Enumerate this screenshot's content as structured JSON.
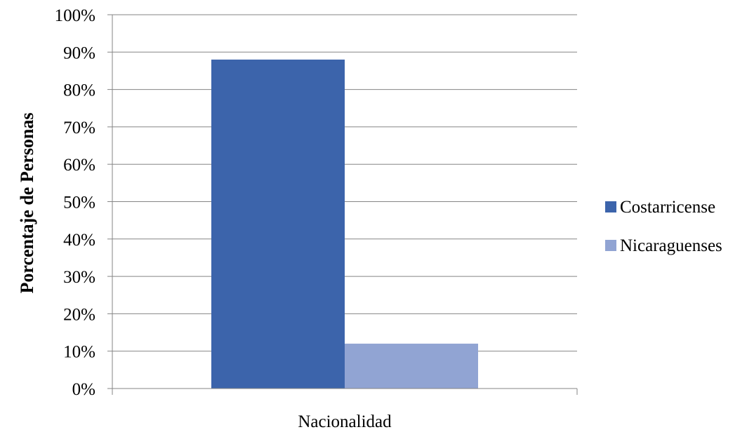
{
  "chart_data": {
    "type": "bar",
    "categories": [
      "Nacionalidad"
    ],
    "series": [
      {
        "name": "Costarricense",
        "values": [
          88
        ],
        "color": "#3C64AB"
      },
      {
        "name": "Nicaraguenses",
        "values": [
          12
        ],
        "color": "#91A4D3"
      }
    ],
    "title": "",
    "xlabel": "Nacionalidad",
    "ylabel": "Porcentaje de Personas",
    "ylim": [
      0,
      100
    ],
    "yticks": [
      "0%",
      "10%",
      "20%",
      "30%",
      "40%",
      "50%",
      "60%",
      "70%",
      "80%",
      "90%",
      "100%"
    ],
    "grid": true,
    "legend_position": "right"
  }
}
